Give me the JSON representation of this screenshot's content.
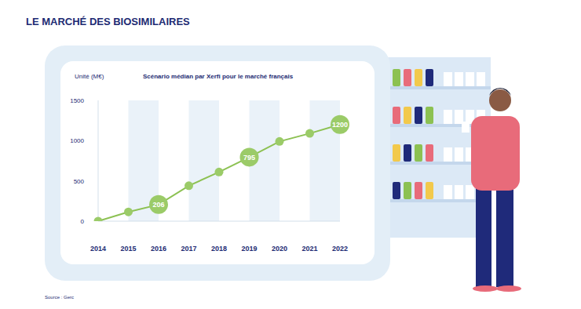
{
  "chart_data": {
    "type": "line",
    "title": "LE MARCHÉ DES BIOSIMILAIRES",
    "subtitle": "Scénario médian par Xerfi pour le marché français",
    "y_label": "Unité (M€)",
    "source": "Source : Gerc",
    "categories": [
      "2014",
      "2015",
      "2016",
      "2017",
      "2018",
      "2019",
      "2020",
      "2021",
      "2022"
    ],
    "values": [
      0,
      115,
      206,
      440,
      610,
      795,
      990,
      1090,
      1200
    ],
    "value_labels": [
      null,
      null,
      "206",
      null,
      null,
      "795",
      null,
      null,
      "1200"
    ],
    "color": "#8cc152",
    "ylim": [
      0,
      1500
    ],
    "yticks": [
      0,
      500,
      1000,
      1500
    ],
    "grid": false,
    "data_labels": true,
    "marker": "circle"
  }
}
